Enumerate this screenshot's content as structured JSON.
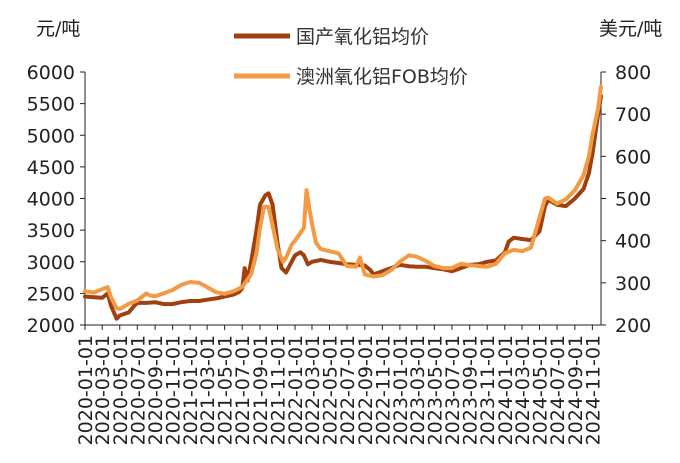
{
  "chart_data": {
    "type": "line",
    "title": "",
    "left_unit": "元/吨",
    "right_unit": "美元/吨",
    "y_left": {
      "min": 2000,
      "max": 6000,
      "ticks": [
        "2000",
        "2500",
        "3000",
        "3500",
        "4000",
        "4500",
        "5000",
        "5500",
        "6000"
      ]
    },
    "y_right": {
      "min": 200,
      "max": 800,
      "ticks": [
        "200",
        "300",
        "400",
        "500",
        "600",
        "700",
        "800"
      ]
    },
    "x_start": "2020-01",
    "x_end": "2024-12",
    "x_ticks": [
      "2020-01-01",
      "2020-03-01",
      "2020-05-01",
      "2020-07-01",
      "2020-09-01",
      "2020-11-01",
      "2021-01-01",
      "2021-03-01",
      "2021-05-01",
      "2021-07-01",
      "2021-09-01",
      "2021-11-01",
      "2022-01-01",
      "2022-03-01",
      "2022-05-01",
      "2022-07-01",
      "2022-09-01",
      "2022-11-01",
      "2023-01-01",
      "2023-03-01",
      "2023-05-01",
      "2023-07-01",
      "2023-09-01",
      "2023-11-01",
      "2024-01-01",
      "2024-03-01",
      "2024-05-01",
      "2024-07-01",
      "2024-09-01",
      "2024-11-01"
    ],
    "legend_position": "top-center",
    "colors": {
      "domestic": "#a0400e",
      "australia": "#f39a45",
      "axis": "#222222"
    },
    "series": [
      {
        "name": "国产氧化铝均价",
        "axis": "left",
        "points": [
          [
            "2020-01-01",
            2450
          ],
          [
            "2020-02-01",
            2440
          ],
          [
            "2020-03-01",
            2430
          ],
          [
            "2020-03-20",
            2500
          ],
          [
            "2020-04-01",
            2300
          ],
          [
            "2020-04-20",
            2100
          ],
          [
            "2020-05-01",
            2150
          ],
          [
            "2020-06-01",
            2200
          ],
          [
            "2020-06-20",
            2300
          ],
          [
            "2020-07-01",
            2350
          ],
          [
            "2020-08-01",
            2350
          ],
          [
            "2020-09-01",
            2360
          ],
          [
            "2020-10-01",
            2330
          ],
          [
            "2020-11-01",
            2330
          ],
          [
            "2020-12-01",
            2360
          ],
          [
            "2021-01-01",
            2380
          ],
          [
            "2021-02-01",
            2380
          ],
          [
            "2021-03-01",
            2400
          ],
          [
            "2021-04-01",
            2420
          ],
          [
            "2021-05-01",
            2450
          ],
          [
            "2021-06-01",
            2480
          ],
          [
            "2021-06-20",
            2520
          ],
          [
            "2021-07-01",
            2580
          ],
          [
            "2021-07-10",
            2900
          ],
          [
            "2021-07-20",
            2700
          ],
          [
            "2021-08-01",
            3000
          ],
          [
            "2021-08-20",
            3500
          ],
          [
            "2021-09-01",
            3900
          ],
          [
            "2021-09-20",
            4050
          ],
          [
            "2021-10-01",
            4080
          ],
          [
            "2021-10-15",
            3900
          ],
          [
            "2021-11-01",
            3300
          ],
          [
            "2021-11-15",
            2900
          ],
          [
            "2021-12-01",
            2830
          ],
          [
            "2021-12-20",
            3000
          ],
          [
            "2022-01-01",
            3100
          ],
          [
            "2022-01-20",
            3150
          ],
          [
            "2022-02-01",
            3100
          ],
          [
            "2022-02-15",
            2960
          ],
          [
            "2022-03-01",
            3000
          ],
          [
            "2022-04-01",
            3030
          ],
          [
            "2022-05-01",
            3000
          ],
          [
            "2022-06-01",
            2980
          ],
          [
            "2022-07-01",
            2960
          ],
          [
            "2022-08-01",
            2950
          ],
          [
            "2022-09-01",
            2940
          ],
          [
            "2022-09-20",
            2870
          ],
          [
            "2022-10-01",
            2800
          ],
          [
            "2022-11-01",
            2850
          ],
          [
            "2022-12-01",
            2900
          ],
          [
            "2023-01-01",
            2950
          ],
          [
            "2023-02-01",
            2930
          ],
          [
            "2023-03-01",
            2920
          ],
          [
            "2023-04-01",
            2920
          ],
          [
            "2023-05-01",
            2900
          ],
          [
            "2023-06-01",
            2880
          ],
          [
            "2023-07-01",
            2850
          ],
          [
            "2023-08-01",
            2900
          ],
          [
            "2023-09-01",
            2950
          ],
          [
            "2023-10-01",
            2960
          ],
          [
            "2023-11-01",
            3000
          ],
          [
            "2023-12-01",
            3020
          ],
          [
            "2024-01-01",
            3150
          ],
          [
            "2024-01-15",
            3320
          ],
          [
            "2024-02-01",
            3380
          ],
          [
            "2024-03-01",
            3360
          ],
          [
            "2024-04-01",
            3340
          ],
          [
            "2024-05-01",
            3480
          ],
          [
            "2024-05-20",
            3880
          ],
          [
            "2024-06-01",
            3980
          ],
          [
            "2024-07-01",
            3900
          ],
          [
            "2024-08-01",
            3880
          ],
          [
            "2024-09-01",
            4000
          ],
          [
            "2024-10-01",
            4150
          ],
          [
            "2024-10-20",
            4400
          ],
          [
            "2024-11-01",
            4700
          ],
          [
            "2024-11-20",
            5300
          ],
          [
            "2024-12-01",
            5620
          ]
        ]
      },
      {
        "name": "澳洲氧化铝FOB均价",
        "axis": "right",
        "points": [
          [
            "2020-01-01",
            280
          ],
          [
            "2020-02-01",
            277
          ],
          [
            "2020-03-01",
            285
          ],
          [
            "2020-03-20",
            290
          ],
          [
            "2020-04-01",
            265
          ],
          [
            "2020-04-20",
            240
          ],
          [
            "2020-05-01",
            238
          ],
          [
            "2020-06-01",
            250
          ],
          [
            "2020-07-01",
            258
          ],
          [
            "2020-08-01",
            275
          ],
          [
            "2020-08-15",
            270
          ],
          [
            "2020-09-01",
            268
          ],
          [
            "2020-10-01",
            275
          ],
          [
            "2020-11-01",
            283
          ],
          [
            "2020-12-01",
            295
          ],
          [
            "2021-01-01",
            302
          ],
          [
            "2021-02-01",
            300
          ],
          [
            "2021-03-01",
            290
          ],
          [
            "2021-04-01",
            278
          ],
          [
            "2021-05-01",
            274
          ],
          [
            "2021-06-01",
            280
          ],
          [
            "2021-07-01",
            290
          ],
          [
            "2021-08-01",
            320
          ],
          [
            "2021-08-20",
            370
          ],
          [
            "2021-09-01",
            430
          ],
          [
            "2021-09-15",
            480
          ],
          [
            "2021-10-01",
            480
          ],
          [
            "2021-10-20",
            420
          ],
          [
            "2021-11-01",
            380
          ],
          [
            "2021-11-20",
            350
          ],
          [
            "2021-12-01",
            360
          ],
          [
            "2021-12-20",
            390
          ],
          [
            "2022-01-01",
            400
          ],
          [
            "2022-02-01",
            430
          ],
          [
            "2022-02-10",
            520
          ],
          [
            "2022-02-20",
            475
          ],
          [
            "2022-03-01",
            440
          ],
          [
            "2022-03-15",
            395
          ],
          [
            "2022-04-01",
            380
          ],
          [
            "2022-05-01",
            375
          ],
          [
            "2022-06-01",
            370
          ],
          [
            "2022-07-01",
            340
          ],
          [
            "2022-08-01",
            338
          ],
          [
            "2022-08-15",
            360
          ],
          [
            "2022-09-01",
            320
          ],
          [
            "2022-10-01",
            315
          ],
          [
            "2022-11-01",
            318
          ],
          [
            "2022-12-01",
            330
          ],
          [
            "2023-01-01",
            350
          ],
          [
            "2023-02-01",
            365
          ],
          [
            "2023-03-01",
            362
          ],
          [
            "2023-04-01",
            352
          ],
          [
            "2023-05-01",
            340
          ],
          [
            "2023-06-01",
            335
          ],
          [
            "2023-07-01",
            335
          ],
          [
            "2023-08-01",
            345
          ],
          [
            "2023-09-01",
            342
          ],
          [
            "2023-10-01",
            340
          ],
          [
            "2023-11-01",
            338
          ],
          [
            "2023-12-01",
            345
          ],
          [
            "2024-01-01",
            370
          ],
          [
            "2024-02-01",
            378
          ],
          [
            "2024-03-01",
            375
          ],
          [
            "2024-04-01",
            383
          ],
          [
            "2024-05-01",
            455
          ],
          [
            "2024-05-20",
            500
          ],
          [
            "2024-06-01",
            502
          ],
          [
            "2024-07-01",
            488
          ],
          [
            "2024-08-01",
            498
          ],
          [
            "2024-09-01",
            520
          ],
          [
            "2024-10-01",
            555
          ],
          [
            "2024-10-20",
            600
          ],
          [
            "2024-11-01",
            650
          ],
          [
            "2024-11-20",
            710
          ],
          [
            "2024-12-01",
            765
          ]
        ]
      }
    ]
  }
}
